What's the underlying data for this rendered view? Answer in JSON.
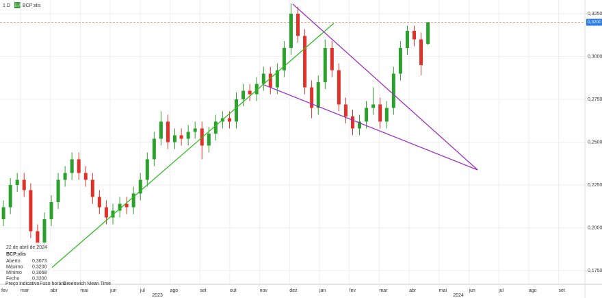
{
  "chart_data": {
    "type": "candlestick",
    "interval": "1 D",
    "symbol": "BCP:xlis",
    "symbol_badge": "EU",
    "up_color": "#2ca02c",
    "down_color": "#e0312a",
    "grid": true,
    "ylim": [
      0.167,
      0.333
    ],
    "xlim": [
      0.313,
      19.88
    ],
    "yticks": [
      {
        "value": 0.325,
        "label": "0,3250"
      },
      {
        "value": 0.3,
        "label": "0,3000"
      },
      {
        "value": 0.275,
        "label": "0,2750"
      },
      {
        "value": 0.25,
        "label": "0,2500"
      },
      {
        "value": 0.225,
        "label": "0,2250"
      },
      {
        "value": 0.2,
        "label": "0,2000"
      },
      {
        "value": 0.175,
        "label": "0,1750"
      }
    ],
    "xticks": [
      {
        "value": 0,
        "label": "fev"
      },
      {
        "value": 1,
        "label": "mar"
      },
      {
        "value": 2,
        "label": "abr"
      },
      {
        "value": 3,
        "label": "mai"
      },
      {
        "value": 4,
        "label": "jun"
      },
      {
        "value": 5,
        "label": "jul"
      },
      {
        "value": 6,
        "label": "ago"
      },
      {
        "value": 7,
        "label": "set"
      },
      {
        "value": 8,
        "label": "out"
      },
      {
        "value": 9,
        "label": "nov"
      },
      {
        "value": 10,
        "label": "dez"
      },
      {
        "value": 11,
        "label": "jan"
      },
      {
        "value": 12,
        "label": "fev"
      },
      {
        "value": 13,
        "label": "mar"
      },
      {
        "value": 14,
        "label": "abr"
      },
      {
        "value": 15,
        "label": "mai"
      },
      {
        "value": 16,
        "label": "jun"
      },
      {
        "value": 17,
        "label": "jul"
      },
      {
        "value": 18,
        "label": "ago"
      },
      {
        "value": 19,
        "label": "set"
      }
    ],
    "year_labels": [
      {
        "value": 5.58,
        "label": "2023"
      },
      {
        "value": 15.65,
        "label": "2024"
      }
    ],
    "x": [
      0.43,
      0.66,
      0.89,
      1.12,
      1.34,
      1.57,
      1.8,
      2.03,
      2.26,
      2.49,
      2.72,
      2.95,
      3.18,
      3.41,
      3.64,
      3.87,
      4.09,
      4.32,
      4.55,
      4.78,
      5.01,
      5.24,
      5.47,
      5.7,
      5.93,
      6.16,
      6.38,
      6.61,
      6.84,
      7.07,
      7.3,
      7.53,
      7.76,
      7.99,
      8.22,
      8.45,
      8.67,
      8.9,
      9.13,
      9.36,
      9.59,
      9.82,
      10.05,
      10.28,
      10.51,
      10.74,
      10.96,
      11.19,
      11.42,
      11.65,
      11.88,
      12.11,
      12.34,
      12.57,
      12.8,
      13.03,
      13.25,
      13.48,
      13.71,
      13.94,
      14.17,
      14.4,
      14.63
    ],
    "open": [
      0.205,
      0.212,
      0.225,
      0.228,
      0.222,
      0.198,
      0.19,
      0.205,
      0.215,
      0.228,
      0.232,
      0.24,
      0.232,
      0.228,
      0.218,
      0.212,
      0.206,
      0.21,
      0.214,
      0.212,
      0.22,
      0.228,
      0.24,
      0.252,
      0.262,
      0.25,
      0.254,
      0.252,
      0.256,
      0.258,
      0.248,
      0.255,
      0.262,
      0.264,
      0.262,
      0.275,
      0.28,
      0.278,
      0.284,
      0.29,
      0.282,
      0.292,
      0.305,
      0.325,
      0.312,
      0.282,
      0.27,
      0.285,
      0.305,
      0.292,
      0.272,
      0.265,
      0.258,
      0.262,
      0.27,
      0.272,
      0.262,
      0.27,
      0.29,
      0.305,
      0.315,
      0.31,
      0.3073
    ],
    "high": [
      0.216,
      0.229,
      0.232,
      0.232,
      0.226,
      0.202,
      0.209,
      0.219,
      0.232,
      0.236,
      0.244,
      0.244,
      0.236,
      0.232,
      0.222,
      0.216,
      0.214,
      0.218,
      0.218,
      0.224,
      0.232,
      0.244,
      0.256,
      0.268,
      0.266,
      0.258,
      0.258,
      0.26,
      0.262,
      0.262,
      0.259,
      0.266,
      0.268,
      0.268,
      0.279,
      0.284,
      0.284,
      0.288,
      0.294,
      0.294,
      0.296,
      0.309,
      0.331,
      0.329,
      0.316,
      0.286,
      0.289,
      0.31,
      0.309,
      0.296,
      0.276,
      0.269,
      0.266,
      0.274,
      0.282,
      0.276,
      0.274,
      0.294,
      0.309,
      0.318,
      0.318,
      0.314,
      0.32
    ],
    "low": [
      0.201,
      0.208,
      0.221,
      0.218,
      0.194,
      0.186,
      0.186,
      0.201,
      0.211,
      0.224,
      0.228,
      0.228,
      0.224,
      0.214,
      0.208,
      0.202,
      0.202,
      0.206,
      0.208,
      0.208,
      0.216,
      0.224,
      0.236,
      0.248,
      0.246,
      0.246,
      0.248,
      0.248,
      0.252,
      0.24,
      0.244,
      0.251,
      0.258,
      0.258,
      0.258,
      0.271,
      0.274,
      0.274,
      0.28,
      0.278,
      0.278,
      0.288,
      0.301,
      0.308,
      0.278,
      0.264,
      0.266,
      0.281,
      0.288,
      0.268,
      0.261,
      0.254,
      0.254,
      0.258,
      0.266,
      0.258,
      0.258,
      0.266,
      0.286,
      0.301,
      0.306,
      0.289,
      0.3068
    ],
    "close": [
      0.212,
      0.225,
      0.228,
      0.222,
      0.198,
      0.19,
      0.205,
      0.215,
      0.228,
      0.232,
      0.24,
      0.232,
      0.228,
      0.218,
      0.212,
      0.206,
      0.21,
      0.214,
      0.212,
      0.22,
      0.228,
      0.24,
      0.252,
      0.262,
      0.25,
      0.254,
      0.252,
      0.256,
      0.258,
      0.248,
      0.255,
      0.262,
      0.264,
      0.262,
      0.275,
      0.28,
      0.278,
      0.284,
      0.29,
      0.282,
      0.292,
      0.305,
      0.325,
      0.312,
      0.282,
      0.27,
      0.285,
      0.305,
      0.292,
      0.272,
      0.265,
      0.258,
      0.262,
      0.27,
      0.272,
      0.262,
      0.27,
      0.29,
      0.305,
      0.315,
      0.31,
      0.295,
      0.32
    ],
    "trendlines": [
      {
        "color": "#33bb22",
        "x": [
          1.8,
          11.48
        ],
        "y": [
          0.173,
          0.3194
        ]
      },
      {
        "color": "#9b30c0",
        "x": [
          10.11,
          16.29
        ],
        "y": [
          0.3306,
          0.2338
        ]
      },
      {
        "color": "#9b30c0",
        "x": [
          9.15,
          16.29
        ],
        "y": [
          0.2834,
          0.2338
        ]
      }
    ],
    "last_price": {
      "value": 0.32,
      "label": "0,3200",
      "line_color": "#e8825a",
      "tag_color": "#2b7de9"
    },
    "info_box": {
      "date": "22 de abril de 2024",
      "symbol": "BCP:xlis",
      "labels": [
        "Aberto",
        "Máximo",
        "Mínimo",
        "Fecho"
      ],
      "values": [
        0.3073,
        0.32,
        0.3068,
        0.32
      ],
      "value_labels": [
        "0,3073",
        "0,3200",
        "0,3068",
        "0,3200"
      ]
    },
    "footer": [
      "Preço indicativo",
      "Fuso horário",
      "Greenwich Mean Time"
    ]
  }
}
